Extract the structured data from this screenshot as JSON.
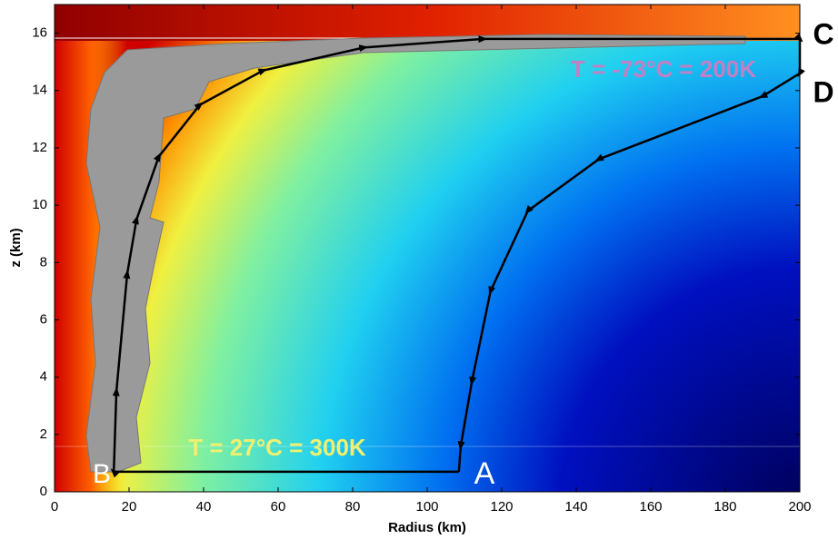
{
  "chart_data": {
    "type": "cycle",
    "xlabel": "Radius (km)",
    "ylabel": "z (km)",
    "xlim": [
      0,
      200
    ],
    "ylim": [
      0,
      17
    ],
    "xticks": [
      0,
      20,
      40,
      60,
      80,
      100,
      120,
      140,
      160,
      180,
      200
    ],
    "yticks": [
      0,
      2,
      4,
      6,
      8,
      10,
      12,
      14,
      16
    ],
    "annotations": [
      "T = -73°C = 200K",
      "T = 27°C = 300K"
    ],
    "point_labels": [
      "A",
      "B",
      "C",
      "D"
    ],
    "series": [
      {
        "color": "#000000",
        "x": [
          108.5,
          15.9,
          16.6,
          19.5,
          22,
          28,
          39,
          56,
          83,
          115,
          200,
          200,
          190,
          146,
          127,
          117,
          112,
          109,
          108.5
        ],
        "values": [
          0.7,
          0.7,
          3.5,
          7.6,
          9.5,
          11.7,
          13.5,
          14.7,
          15.5,
          15.8,
          15.8,
          14.6,
          13.8,
          11.6,
          9.8,
          7,
          3.85,
          1.6,
          0.7
        ]
      }
    ]
  }
}
